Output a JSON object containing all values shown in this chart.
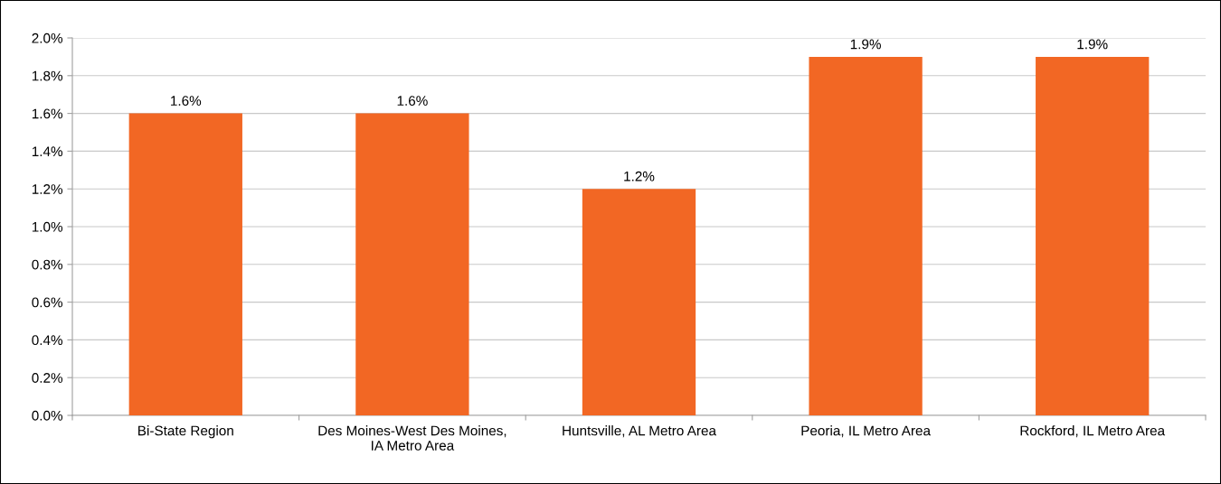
{
  "chart_data": {
    "type": "bar",
    "categories": [
      "Bi-State Region",
      "Des Moines-West Des Moines,\nIA Metro Area",
      "Huntsville, AL Metro Area",
      "Peoria, IL Metro Area",
      "Rockford, IL Metro Area"
    ],
    "values": [
      1.6,
      1.6,
      1.2,
      1.9,
      1.9
    ],
    "value_labels": [
      "1.6%",
      "1.6%",
      "1.2%",
      "1.9%",
      "1.9%"
    ],
    "color": "#f26724",
    "ylim": [
      0,
      2.0
    ],
    "yticks": [
      {
        "value": 0,
        "label": "0.0%"
      },
      {
        "value": 0.2,
        "label": "0.2%"
      },
      {
        "value": 0.4,
        "label": "0.4%"
      },
      {
        "value": 0.6,
        "label": "0.6%"
      },
      {
        "value": 0.8,
        "label": "0.8%"
      },
      {
        "value": 1.0,
        "label": "1.0%"
      },
      {
        "value": 1.2,
        "label": "1.2%"
      },
      {
        "value": 1.4,
        "label": "1.4%"
      },
      {
        "value": 1.6,
        "label": "1.6%"
      },
      {
        "value": 1.8,
        "label": "1.8%"
      },
      {
        "value": 2.0,
        "label": "2.0%"
      }
    ],
    "grid": "y",
    "legend": false
  }
}
